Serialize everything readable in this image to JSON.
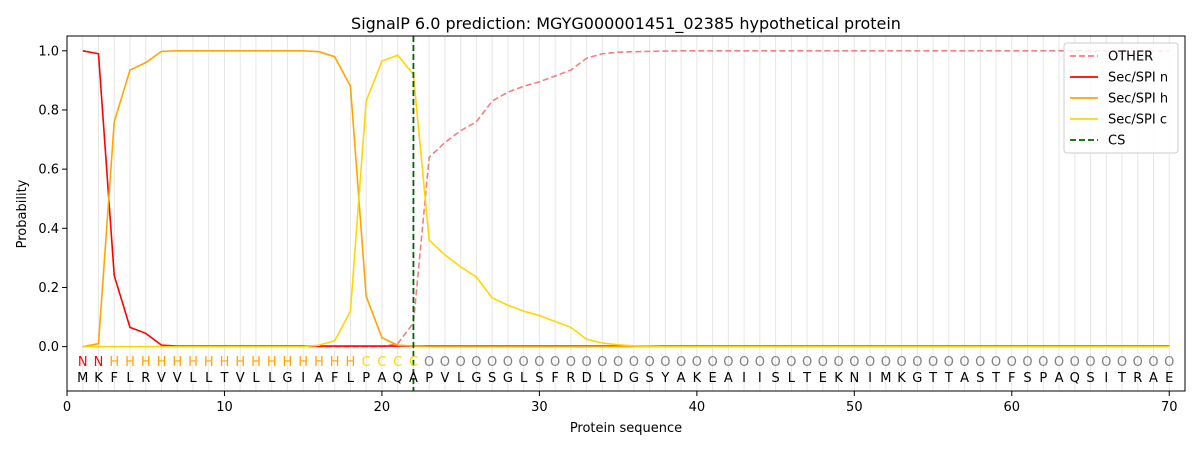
{
  "chart_data": {
    "type": "line",
    "title": "SignalP 6.0 prediction: MGYG000001451_02385 hypothetical protein",
    "xlabel": "Protein sequence",
    "ylabel": "Probability",
    "xlim": [
      0,
      71
    ],
    "ylim": [
      -0.15,
      1.05
    ],
    "xticks": [
      0,
      10,
      20,
      30,
      40,
      50,
      60,
      70
    ],
    "yticks": [
      0.0,
      0.2,
      0.4,
      0.6,
      0.8,
      1.0
    ],
    "xtick_labels": [
      "0",
      "10",
      "20",
      "30",
      "40",
      "50",
      "60",
      "70"
    ],
    "ytick_labels": [
      "0.0",
      "0.2",
      "0.4",
      "0.6",
      "0.8",
      "1.0"
    ],
    "grid": "vertical lines at each residue",
    "legend_position": "top-right",
    "sequence": [
      "M",
      "K",
      "F",
      "L",
      "R",
      "V",
      "V",
      "L",
      "L",
      "T",
      "V",
      "L",
      "L",
      "G",
      "I",
      "A",
      "F",
      "L",
      "P",
      "A",
      "Q",
      "A",
      "P",
      "V",
      "L",
      "G",
      "S",
      "G",
      "L",
      "S",
      "F",
      "R",
      "D",
      "L",
      "D",
      "G",
      "S",
      "Y",
      "A",
      "K",
      "E",
      "A",
      "I",
      "I",
      "S",
      "L",
      "T",
      "E",
      "K",
      "N",
      "I",
      "M",
      "K",
      "G",
      "T",
      "T",
      "A",
      "S",
      "T",
      "F",
      "S",
      "P",
      "A",
      "Q",
      "S",
      "I",
      "T",
      "R",
      "A",
      "E"
    ],
    "region_labels": [
      "N",
      "N",
      "H",
      "H",
      "H",
      "H",
      "H",
      "H",
      "H",
      "H",
      "H",
      "H",
      "H",
      "H",
      "H",
      "H",
      "H",
      "H",
      "C",
      "C",
      "C",
      "C",
      "O",
      "O",
      "O",
      "O",
      "O",
      "O",
      "O",
      "O",
      "O",
      "O",
      "O",
      "O",
      "O",
      "O",
      "O",
      "O",
      "O",
      "O",
      "O",
      "O",
      "O",
      "O",
      "O",
      "O",
      "O",
      "O",
      "O",
      "O",
      "O",
      "O",
      "O",
      "O",
      "O",
      "O",
      "O",
      "O",
      "O",
      "O",
      "O",
      "O",
      "O",
      "O",
      "O",
      "O",
      "O",
      "O",
      "O",
      "O"
    ],
    "region_colors": {
      "N": "#ff0000",
      "H": "#ffa500",
      "C": "#ffd700",
      "O": "#808080"
    },
    "cleavage_site": 22,
    "series": [
      {
        "name": "OTHER",
        "color": "#f08080",
        "dash": "dashed",
        "values": [
          0.0,
          0.0,
          0.0,
          0.0,
          0.0,
          0.0,
          0.0,
          0.0,
          0.0,
          0.0,
          0.0,
          0.0,
          0.0,
          0.0,
          0.0,
          0.0,
          0.0,
          0.0,
          0.0,
          0.0,
          0.01,
          0.08,
          0.64,
          0.69,
          0.73,
          0.76,
          0.83,
          0.86,
          0.88,
          0.895,
          0.915,
          0.935,
          0.975,
          0.99,
          0.995,
          0.997,
          0.998,
          0.999,
          1.0,
          1.0,
          1.0,
          1.0,
          1.0,
          1.0,
          1.0,
          1.0,
          1.0,
          1.0,
          1.0,
          1.0,
          1.0,
          1.0,
          1.0,
          1.0,
          1.0,
          1.0,
          1.0,
          1.0,
          1.0,
          1.0,
          1.0,
          1.0,
          1.0,
          1.0,
          1.0,
          1.0,
          1.0,
          1.0,
          1.0,
          1.0
        ]
      },
      {
        "name": "Sec/SPI n",
        "color": "#ff0000",
        "dash": "solid",
        "values": [
          1.0,
          0.99,
          0.24,
          0.065,
          0.045,
          0.005,
          0.002,
          0.002,
          0.002,
          0.002,
          0.002,
          0.002,
          0.002,
          0.002,
          0.002,
          0.002,
          0.002,
          0.002,
          0.002,
          0.002,
          0.002,
          0.002,
          0.002,
          0.002,
          0.002,
          0.002,
          0.002,
          0.002,
          0.002,
          0.002,
          0.002,
          0.002,
          0.002,
          0.002,
          0.002,
          0.002,
          0.002,
          0.002,
          0.002,
          0.002,
          0.002,
          0.002,
          0.002,
          0.002,
          0.002,
          0.002,
          0.002,
          0.002,
          0.002,
          0.002,
          0.002,
          0.002,
          0.002,
          0.002,
          0.002,
          0.002,
          0.002,
          0.002,
          0.002,
          0.002,
          0.002,
          0.002,
          0.002,
          0.002,
          0.002,
          0.002,
          0.002,
          0.002,
          0.002,
          0.002
        ]
      },
      {
        "name": "Sec/SPI h",
        "color": "#ffa500",
        "dash": "solid",
        "values": [
          0.0,
          0.01,
          0.76,
          0.935,
          0.96,
          0.998,
          1.0,
          1.0,
          1.0,
          1.0,
          1.0,
          1.0,
          1.0,
          1.0,
          1.0,
          0.997,
          0.98,
          0.88,
          0.17,
          0.03,
          0.005,
          0.002,
          0.0,
          0.0,
          0.0,
          0.0,
          0.0,
          0.0,
          0.0,
          0.0,
          0.0,
          0.0,
          0.0,
          0.0,
          0.0,
          0.0,
          0.0,
          0.0,
          0.0,
          0.0,
          0.0,
          0.0,
          0.0,
          0.0,
          0.0,
          0.0,
          0.0,
          0.0,
          0.0,
          0.0,
          0.0,
          0.0,
          0.0,
          0.0,
          0.0,
          0.0,
          0.0,
          0.0,
          0.0,
          0.0,
          0.0,
          0.0,
          0.0,
          0.0,
          0.0,
          0.0,
          0.0,
          0.0,
          0.0,
          0.0
        ]
      },
      {
        "name": "Sec/SPI c",
        "color": "#ffd700",
        "dash": "solid",
        "values": [
          0.0,
          0.0,
          0.0,
          0.0,
          0.0,
          0.0,
          0.0,
          0.0,
          0.0,
          0.0,
          0.0,
          0.0,
          0.0,
          0.0,
          0.0,
          0.005,
          0.02,
          0.12,
          0.83,
          0.965,
          0.985,
          0.92,
          0.36,
          0.31,
          0.27,
          0.235,
          0.165,
          0.14,
          0.12,
          0.105,
          0.085,
          0.065,
          0.025,
          0.012,
          0.006,
          0.003,
          0.001,
          0.0,
          0.0,
          0.0,
          0.0,
          0.0,
          0.0,
          0.0,
          0.0,
          0.0,
          0.0,
          0.0,
          0.0,
          0.0,
          0.0,
          0.0,
          0.0,
          0.0,
          0.0,
          0.0,
          0.0,
          0.0,
          0.0,
          0.0,
          0.0,
          0.0,
          0.0,
          0.0,
          0.0,
          0.0,
          0.0,
          0.0,
          0.0,
          0.0
        ]
      },
      {
        "name": "CS",
        "color": "#006400",
        "dash": "dashed",
        "vertical_at": 22
      }
    ]
  }
}
